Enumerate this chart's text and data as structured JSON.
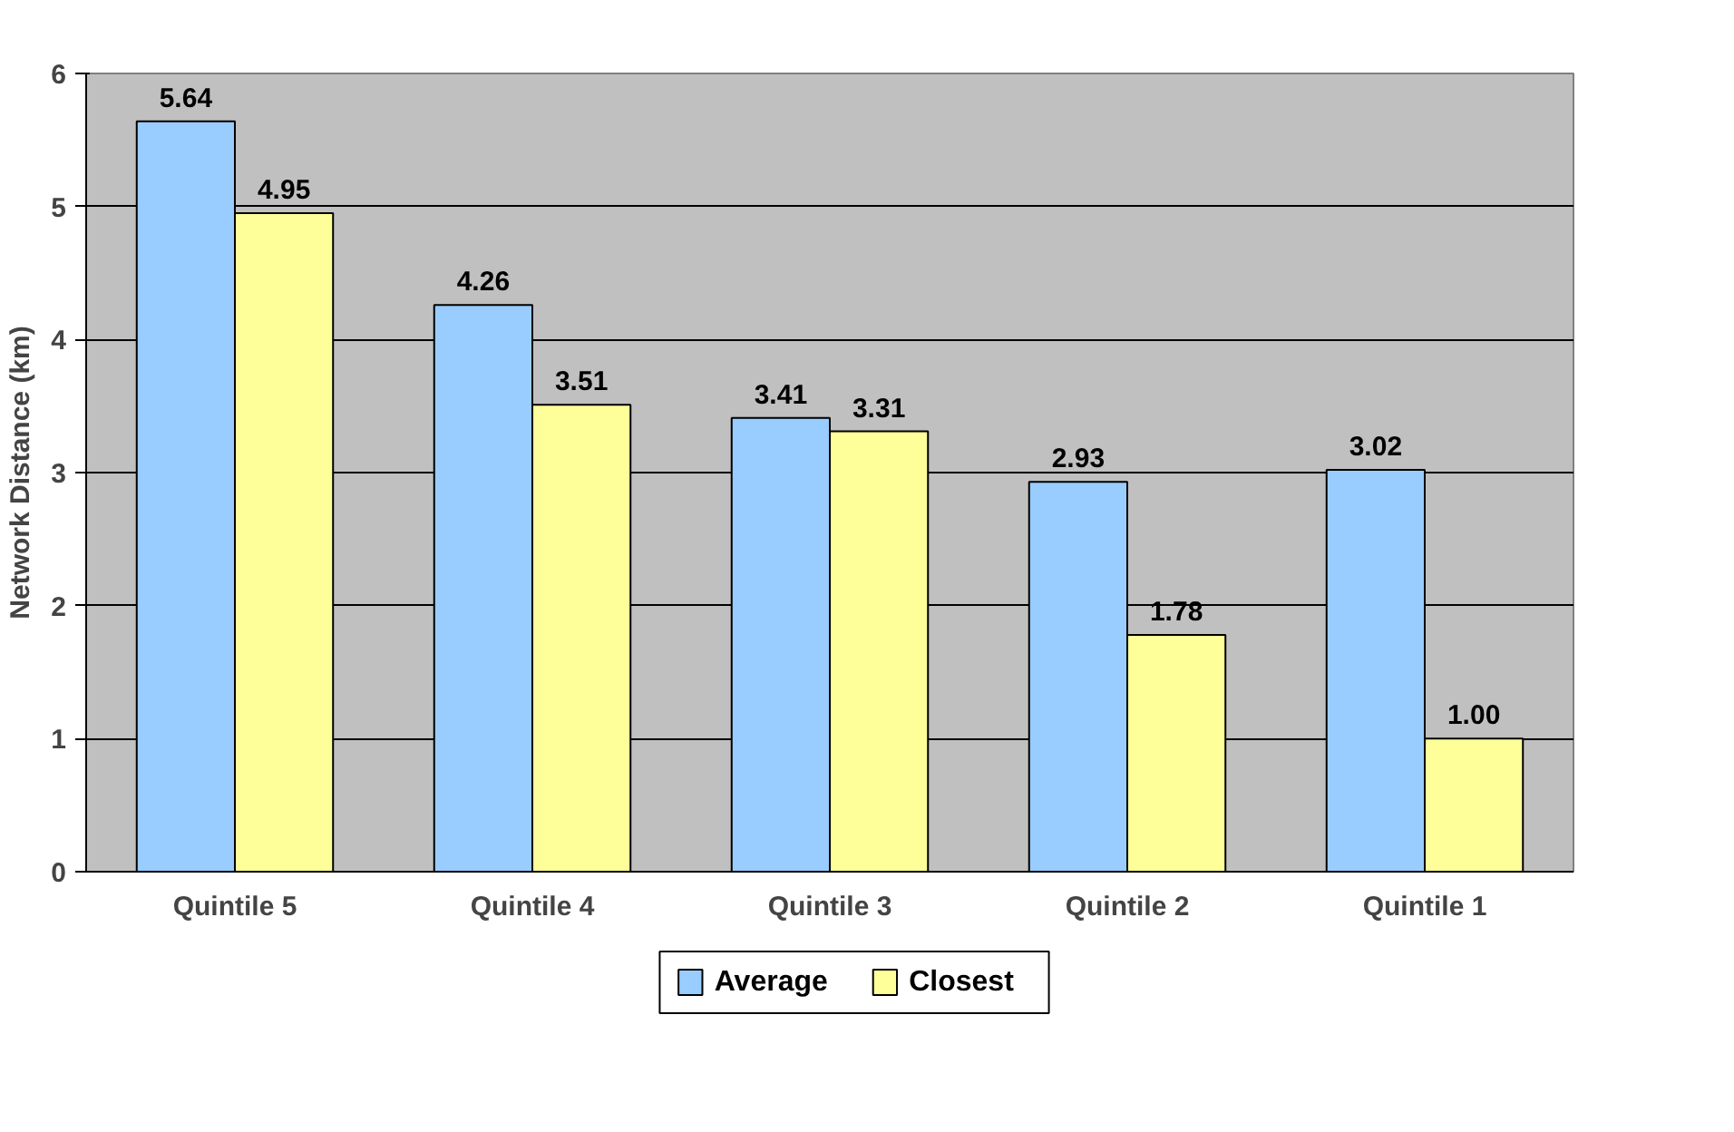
{
  "chart_data": {
    "type": "bar",
    "ylabel": "Network Distance (km)",
    "categories": [
      "Quintile 5",
      "Quintile 4",
      "Quintile 3",
      "Quintile 2",
      "Quintile 1"
    ],
    "series": [
      {
        "name": "Average",
        "color": "#99ccff",
        "values": [
          5.64,
          4.26,
          3.41,
          2.93,
          3.02
        ],
        "value_labels": [
          "5.64",
          "4.26",
          "3.41",
          "2.93",
          "3.02"
        ]
      },
      {
        "name": "Closest",
        "color": "#ffff99",
        "values": [
          4.95,
          3.51,
          3.31,
          1.78,
          1.0
        ],
        "value_labels": [
          "4.95",
          "3.51",
          "3.31",
          "1.78",
          "1.00"
        ]
      }
    ],
    "ylim": [
      0,
      6
    ],
    "yticks": [
      0,
      1,
      2,
      3,
      4,
      5,
      6
    ],
    "grid": "y",
    "legend": "bottom"
  }
}
